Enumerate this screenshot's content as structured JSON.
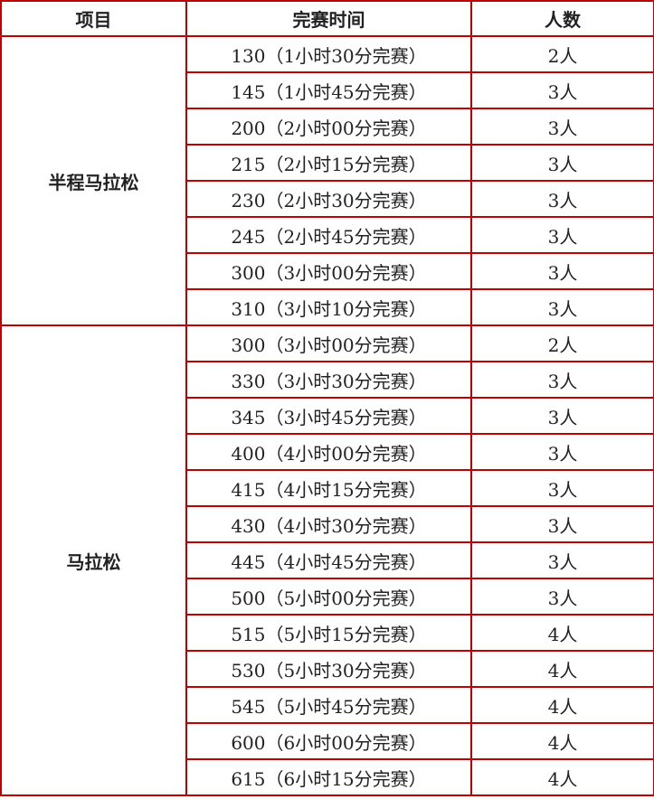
{
  "headers": [
    "项目",
    "完赛时间",
    "人数"
  ],
  "groups": [
    {
      "name": "半程马拉松",
      "rows": [
        [
          "130（1小时30分完赛）",
          "2人"
        ],
        [
          "145（1小时45分完赛）",
          "3人"
        ],
        [
          "200（2小时00分完赛）",
          "3人"
        ],
        [
          "215（2小时15分完赛）",
          "3人"
        ],
        [
          "230（2小时30分完赛）",
          "3人"
        ],
        [
          "245（2小时45分完赛）",
          "3人"
        ],
        [
          "300（3小时00分完赛）",
          "3人"
        ],
        [
          "310（3小时10分完赛）",
          "3人"
        ]
      ]
    },
    {
      "name": "马拉松",
      "rows": [
        [
          "300（3小时00分完赛）",
          "2人"
        ],
        [
          "330（3小时30分完赛）",
          "3人"
        ],
        [
          "345（3小时45分完赛）",
          "3人"
        ],
        [
          "400（4小时00分完赛）",
          "3人"
        ],
        [
          "415（4小时15分完赛）",
          "3人"
        ],
        [
          "430（4小时30分完赛）",
          "3人"
        ],
        [
          "445（4小时45分完赛）",
          "3人"
        ],
        [
          "500（5小时00分完赛）",
          "3人"
        ],
        [
          "515（5小时15分完赛）",
          "4人"
        ],
        [
          "530（5小时30分完赛）",
          "4人"
        ],
        [
          "545（5小时45分完赛）",
          "4人"
        ],
        [
          "600（6小时00分完赛）",
          "4人"
        ],
        [
          "615（6小时15分完赛）",
          "4人"
        ]
      ]
    }
  ],
  "colors": {
    "border": "#c00000"
  }
}
